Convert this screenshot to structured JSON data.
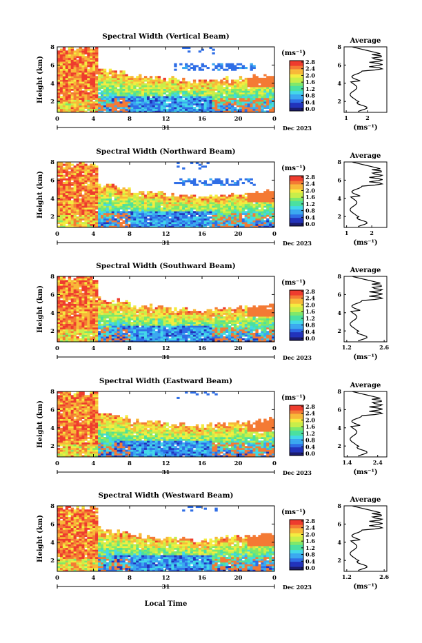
{
  "figure": {
    "date_label": "Dec 2023",
    "day_label": "31",
    "x_axis_label": "Local Time",
    "y_axis_label": "Height (km)",
    "unit_label": "(ms⁻¹)",
    "average_title": "Average",
    "average_xlabel": "(ms⁻¹)"
  },
  "colorbar": {
    "ticks": [
      "2.8",
      "2.4",
      "2.0",
      "1.6",
      "1.2",
      "0.8",
      "0.4",
      "0.0"
    ],
    "range": [
      0.0,
      3.0
    ],
    "colormap": [
      "#1a1a6e",
      "#2233bb",
      "#2f6ee6",
      "#3aa8f0",
      "#43d8e8",
      "#4be0a0",
      "#7ee86a",
      "#c8ee4a",
      "#f4ec40",
      "#f8b838",
      "#f47a34",
      "#ee3c2e"
    ]
  },
  "chart_data": [
    {
      "type": "heatmap",
      "title": "Spectral Width (Vertical Beam)",
      "x": {
        "ticks": [
          "0",
          "4",
          "8",
          "12",
          "16",
          "20",
          "0"
        ],
        "range": [
          0,
          24
        ],
        "label": "Local Time"
      },
      "y": {
        "ticks": [
          "8",
          "6",
          "4",
          "2"
        ],
        "range": [
          0.8,
          8.0
        ],
        "label": "Height (km)"
      },
      "z_range": [
        0.0,
        3.0
      ],
      "average_profile": {
        "title": "Average",
        "xticks": [
          "1",
          "2"
        ],
        "xlim": [
          0.9,
          2.9
        ],
        "xlabel": "(ms⁻¹)"
      }
    },
    {
      "type": "heatmap",
      "title": "Spectral Width (Northward Beam)",
      "x": {
        "ticks": [
          "0",
          "4",
          "8",
          "12",
          "16",
          "20",
          "0"
        ],
        "range": [
          0,
          24
        ],
        "label": "Local Time"
      },
      "y": {
        "ticks": [
          "8",
          "6",
          "4",
          "2"
        ],
        "range": [
          0.8,
          8.0
        ],
        "label": "Height (km)"
      },
      "z_range": [
        0.0,
        3.0
      ],
      "average_profile": {
        "title": "Average",
        "xticks": [
          "1",
          "2"
        ],
        "xlim": [
          0.9,
          2.6
        ],
        "xlabel": "(ms⁻¹)"
      }
    },
    {
      "type": "heatmap",
      "title": "Spectral Width (Southward Beam)",
      "x": {
        "ticks": [
          "0",
          "4",
          "8",
          "12",
          "16",
          "20",
          "0"
        ],
        "range": [
          0,
          24
        ],
        "label": "Local Time"
      },
      "y": {
        "ticks": [
          "8",
          "6",
          "4",
          "2"
        ],
        "range": [
          0.8,
          8.0
        ],
        "label": "Height (km)"
      },
      "z_range": [
        0.0,
        3.0
      ],
      "average_profile": {
        "title": "Average",
        "xticks": [
          "1.2",
          "2.6"
        ],
        "xlim": [
          1.1,
          2.7
        ],
        "xlabel": "(ms⁻¹)"
      }
    },
    {
      "type": "heatmap",
      "title": "Spectral Width (Eastward Beam)",
      "x": {
        "ticks": [
          "0",
          "4",
          "8",
          "12",
          "16",
          "20",
          "0"
        ],
        "range": [
          0,
          24
        ],
        "label": "Local Time"
      },
      "y": {
        "ticks": [
          "8",
          "6",
          "4",
          "2"
        ],
        "range": [
          0.8,
          8.0
        ],
        "label": "Height (km)"
      },
      "z_range": [
        0.0,
        3.0
      ],
      "average_profile": {
        "title": "Average",
        "xticks": [
          "1.4",
          "2.4"
        ],
        "xlim": [
          1.3,
          2.7
        ],
        "xlabel": "(ms⁻¹)"
      }
    },
    {
      "type": "heatmap",
      "title": "Spectral Width (Westward Beam)",
      "x": {
        "ticks": [
          "0",
          "4",
          "8",
          "12",
          "16",
          "20",
          "0"
        ],
        "range": [
          0,
          24
        ],
        "label": "Local Time"
      },
      "y": {
        "ticks": [
          "8",
          "6",
          "4",
          "2"
        ],
        "range": [
          0.8,
          8.0
        ],
        "label": "Height (km)"
      },
      "z_range": [
        0.0,
        3.0
      ],
      "average_profile": {
        "title": "Average",
        "xticks": [
          "1.2",
          "2.6"
        ],
        "xlim": [
          1.1,
          2.7
        ],
        "xlabel": "(ms⁻¹)"
      }
    }
  ]
}
